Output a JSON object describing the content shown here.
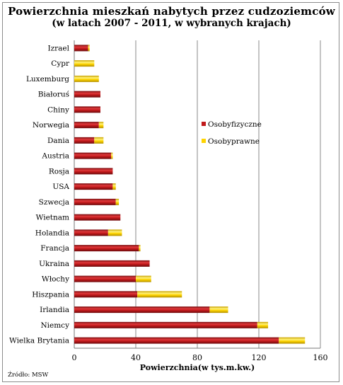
{
  "chart_data": {
    "type": "bar",
    "orientation": "horizontal",
    "stacked": true,
    "title": "Powierzchnia mieszkań nabytych przez cudzoziemców",
    "subtitle": "(w latach 2007 - 2011, w wybranych krajach)",
    "xlabel": "Powierzchnia(w tys.m.kw.)",
    "ylabel": "",
    "xlim": [
      0,
      160
    ],
    "xticks": [
      "0",
      "40",
      "80",
      "120",
      "160"
    ],
    "grid": "vertical",
    "legend_position": "right",
    "categories": [
      "Izrael",
      "Cypr",
      "Luxemburg",
      "Białoruś",
      "Chiny",
      "Norwegia",
      "Dania",
      "Austria",
      "Rosja",
      "USA",
      "Szwecja",
      "Wietnam",
      "Holandia",
      "Francja",
      "Ukraina",
      "Włochy",
      "Hiszpania",
      "Irlandia",
      "Niemcy",
      "Wielka Brytania"
    ],
    "series": [
      {
        "name": "Osobyfizyczne",
        "color": "#c0191b",
        "values": [
          9,
          0,
          0,
          17,
          17,
          16,
          13,
          24,
          25,
          25,
          27,
          30,
          22,
          42,
          49,
          40,
          41,
          88,
          119,
          133
        ]
      },
      {
        "name": "Osobyprawne",
        "color": "#ffd400",
        "values": [
          1,
          13,
          16,
          0,
          0,
          3,
          6,
          1,
          0,
          2,
          2,
          0,
          9,
          1,
          0,
          10,
          29,
          12,
          7,
          17
        ]
      }
    ]
  },
  "source": "Źródło: MSW"
}
